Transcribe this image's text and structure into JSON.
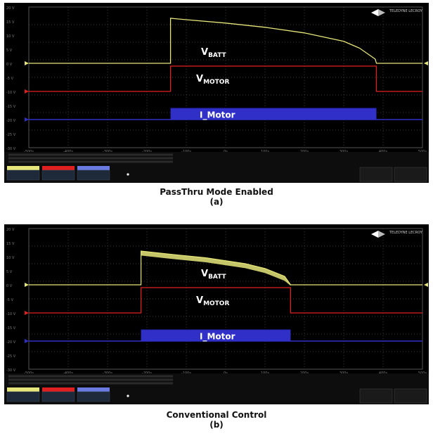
{
  "chart_data": [
    {
      "type": "line",
      "caption": "PassThru Mode Enabled",
      "sublabel": "(a)",
      "y_ticks": [
        "20 V",
        "15 V",
        "10 V",
        "5 V",
        "0 V",
        "-5 V",
        "-10 V",
        "-15 V",
        "-20 V",
        "-25 V",
        "-30 V"
      ],
      "x_ticks": [
        "-500s",
        "-400s",
        "-300s",
        "-200s",
        "-100s",
        "0s",
        "100s",
        "200s",
        "300s",
        "400s",
        "500s"
      ],
      "ylim": [
        -30,
        20
      ],
      "xlim": [
        -500,
        500
      ],
      "series": [
        {
          "name": "VBATT",
          "color": "#e6e67a",
          "x": [
            -500,
            -140,
            -140,
            -100,
            0,
            100,
            200,
            300,
            340,
            380,
            383,
            500
          ],
          "y": [
            0,
            0,
            16,
            15.5,
            14.3,
            12.8,
            10.8,
            7.8,
            5.4,
            1.5,
            0,
            0
          ]
        },
        {
          "name": "VMOTOR",
          "color": "#e02020",
          "x": [
            -500,
            -140,
            -140,
            383,
            383,
            500
          ],
          "y": [
            -10,
            -10,
            -1,
            -1,
            -10,
            -10
          ]
        },
        {
          "name": "I_Motor",
          "color": "#3030c8",
          "fill": true,
          "x": [
            -500,
            -140,
            -140,
            383,
            383,
            500
          ],
          "y": [
            -20,
            -20,
            -16,
            -16,
            -20,
            -20
          ]
        }
      ],
      "labels": {
        "vbatt_main": "V",
        "vbatt_sub": "BATT",
        "vmotor_main": "V",
        "vmotor_sub": "MOTOR",
        "imotor": "I_Motor"
      },
      "logo": "TELEDYNE LECROY"
    },
    {
      "type": "line",
      "caption": "Conventional Control",
      "sublabel": "(b)",
      "y_ticks": [
        "20 V",
        "15 V",
        "10 V",
        "5 V",
        "0 V",
        "-5 V",
        "-10 V",
        "-15 V",
        "-20 V",
        "-25 V",
        "-30 V"
      ],
      "x_ticks": [
        "-500s",
        "-400s",
        "-300s",
        "-200s",
        "-100s",
        "0s",
        "100s",
        "200s",
        "300s",
        "400s",
        "500s"
      ],
      "ylim": [
        -30,
        20
      ],
      "xlim": [
        -500,
        500
      ],
      "series": [
        {
          "name": "VBATT",
          "color": "#e6e67a",
          "band": 1.6,
          "x": [
            -500,
            -215,
            -215,
            -150,
            -50,
            50,
            100,
            150,
            165,
            500
          ],
          "y": [
            0,
            0,
            12,
            11,
            9.6,
            7.5,
            5.8,
            3,
            0,
            0
          ]
        },
        {
          "name": "VMOTOR",
          "color": "#e02020",
          "x": [
            -500,
            -215,
            -215,
            165,
            165,
            500
          ],
          "y": [
            -10,
            -10,
            -1,
            -1,
            -10,
            -10
          ]
        },
        {
          "name": "I_Motor",
          "color": "#3030c8",
          "fill": true,
          "x": [
            -500,
            -215,
            -215,
            165,
            165,
            500
          ],
          "y": [
            -20,
            -20,
            -16,
            -16,
            -20,
            -20
          ]
        }
      ],
      "labels": {
        "vbatt_main": "V",
        "vbatt_sub": "BATT",
        "vmotor_main": "V",
        "vmotor_sub": "MOTOR",
        "imotor": "I_Motor"
      },
      "logo": "TELEDYNE LECROY"
    }
  ]
}
